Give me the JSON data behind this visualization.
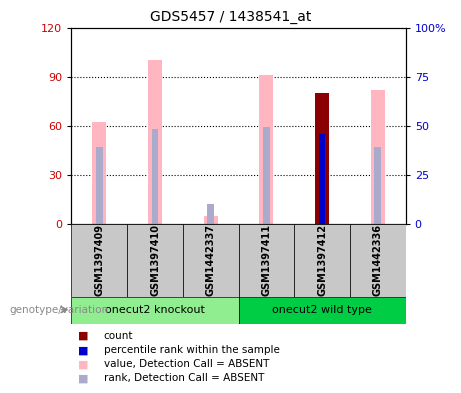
{
  "title": "GDS5457 / 1438541_at",
  "samples": [
    "GSM1397409",
    "GSM1397410",
    "GSM1442337",
    "GSM1397411",
    "GSM1397412",
    "GSM1442336"
  ],
  "value_absent": [
    62,
    100,
    5,
    91,
    null,
    82
  ],
  "rank_absent": [
    47,
    58,
    12,
    59,
    null,
    47
  ],
  "count": [
    null,
    null,
    null,
    null,
    80,
    null
  ],
  "percentile_rank": [
    null,
    null,
    null,
    null,
    55,
    null
  ],
  "ylim_left": [
    0,
    120
  ],
  "ylim_right": [
    0,
    100
  ],
  "left_ticks": [
    0,
    30,
    60,
    90,
    120
  ],
  "right_ticks": [
    0,
    25,
    50,
    75,
    100
  ],
  "left_color": "#CC0000",
  "right_color": "#0000CC",
  "colors": {
    "value_absent": "#FFB6C1",
    "rank_absent": "#AAAACC",
    "count": "#8B0000",
    "percentile": "#0000CD"
  },
  "legend": [
    {
      "label": "count",
      "color": "#8B0000"
    },
    {
      "label": "percentile rank within the sample",
      "color": "#0000CD"
    },
    {
      "label": "value, Detection Call = ABSENT",
      "color": "#FFB6C1"
    },
    {
      "label": "rank, Detection Call = ABSENT",
      "color": "#AAAACC"
    }
  ],
  "group_label": "genotype/variation",
  "groups": [
    {
      "label": "onecut2 knockout",
      "color": "#90EE90",
      "start": 0,
      "end": 2
    },
    {
      "label": "onecut2 wild type",
      "color": "#00CC44",
      "start": 3,
      "end": 5
    }
  ]
}
